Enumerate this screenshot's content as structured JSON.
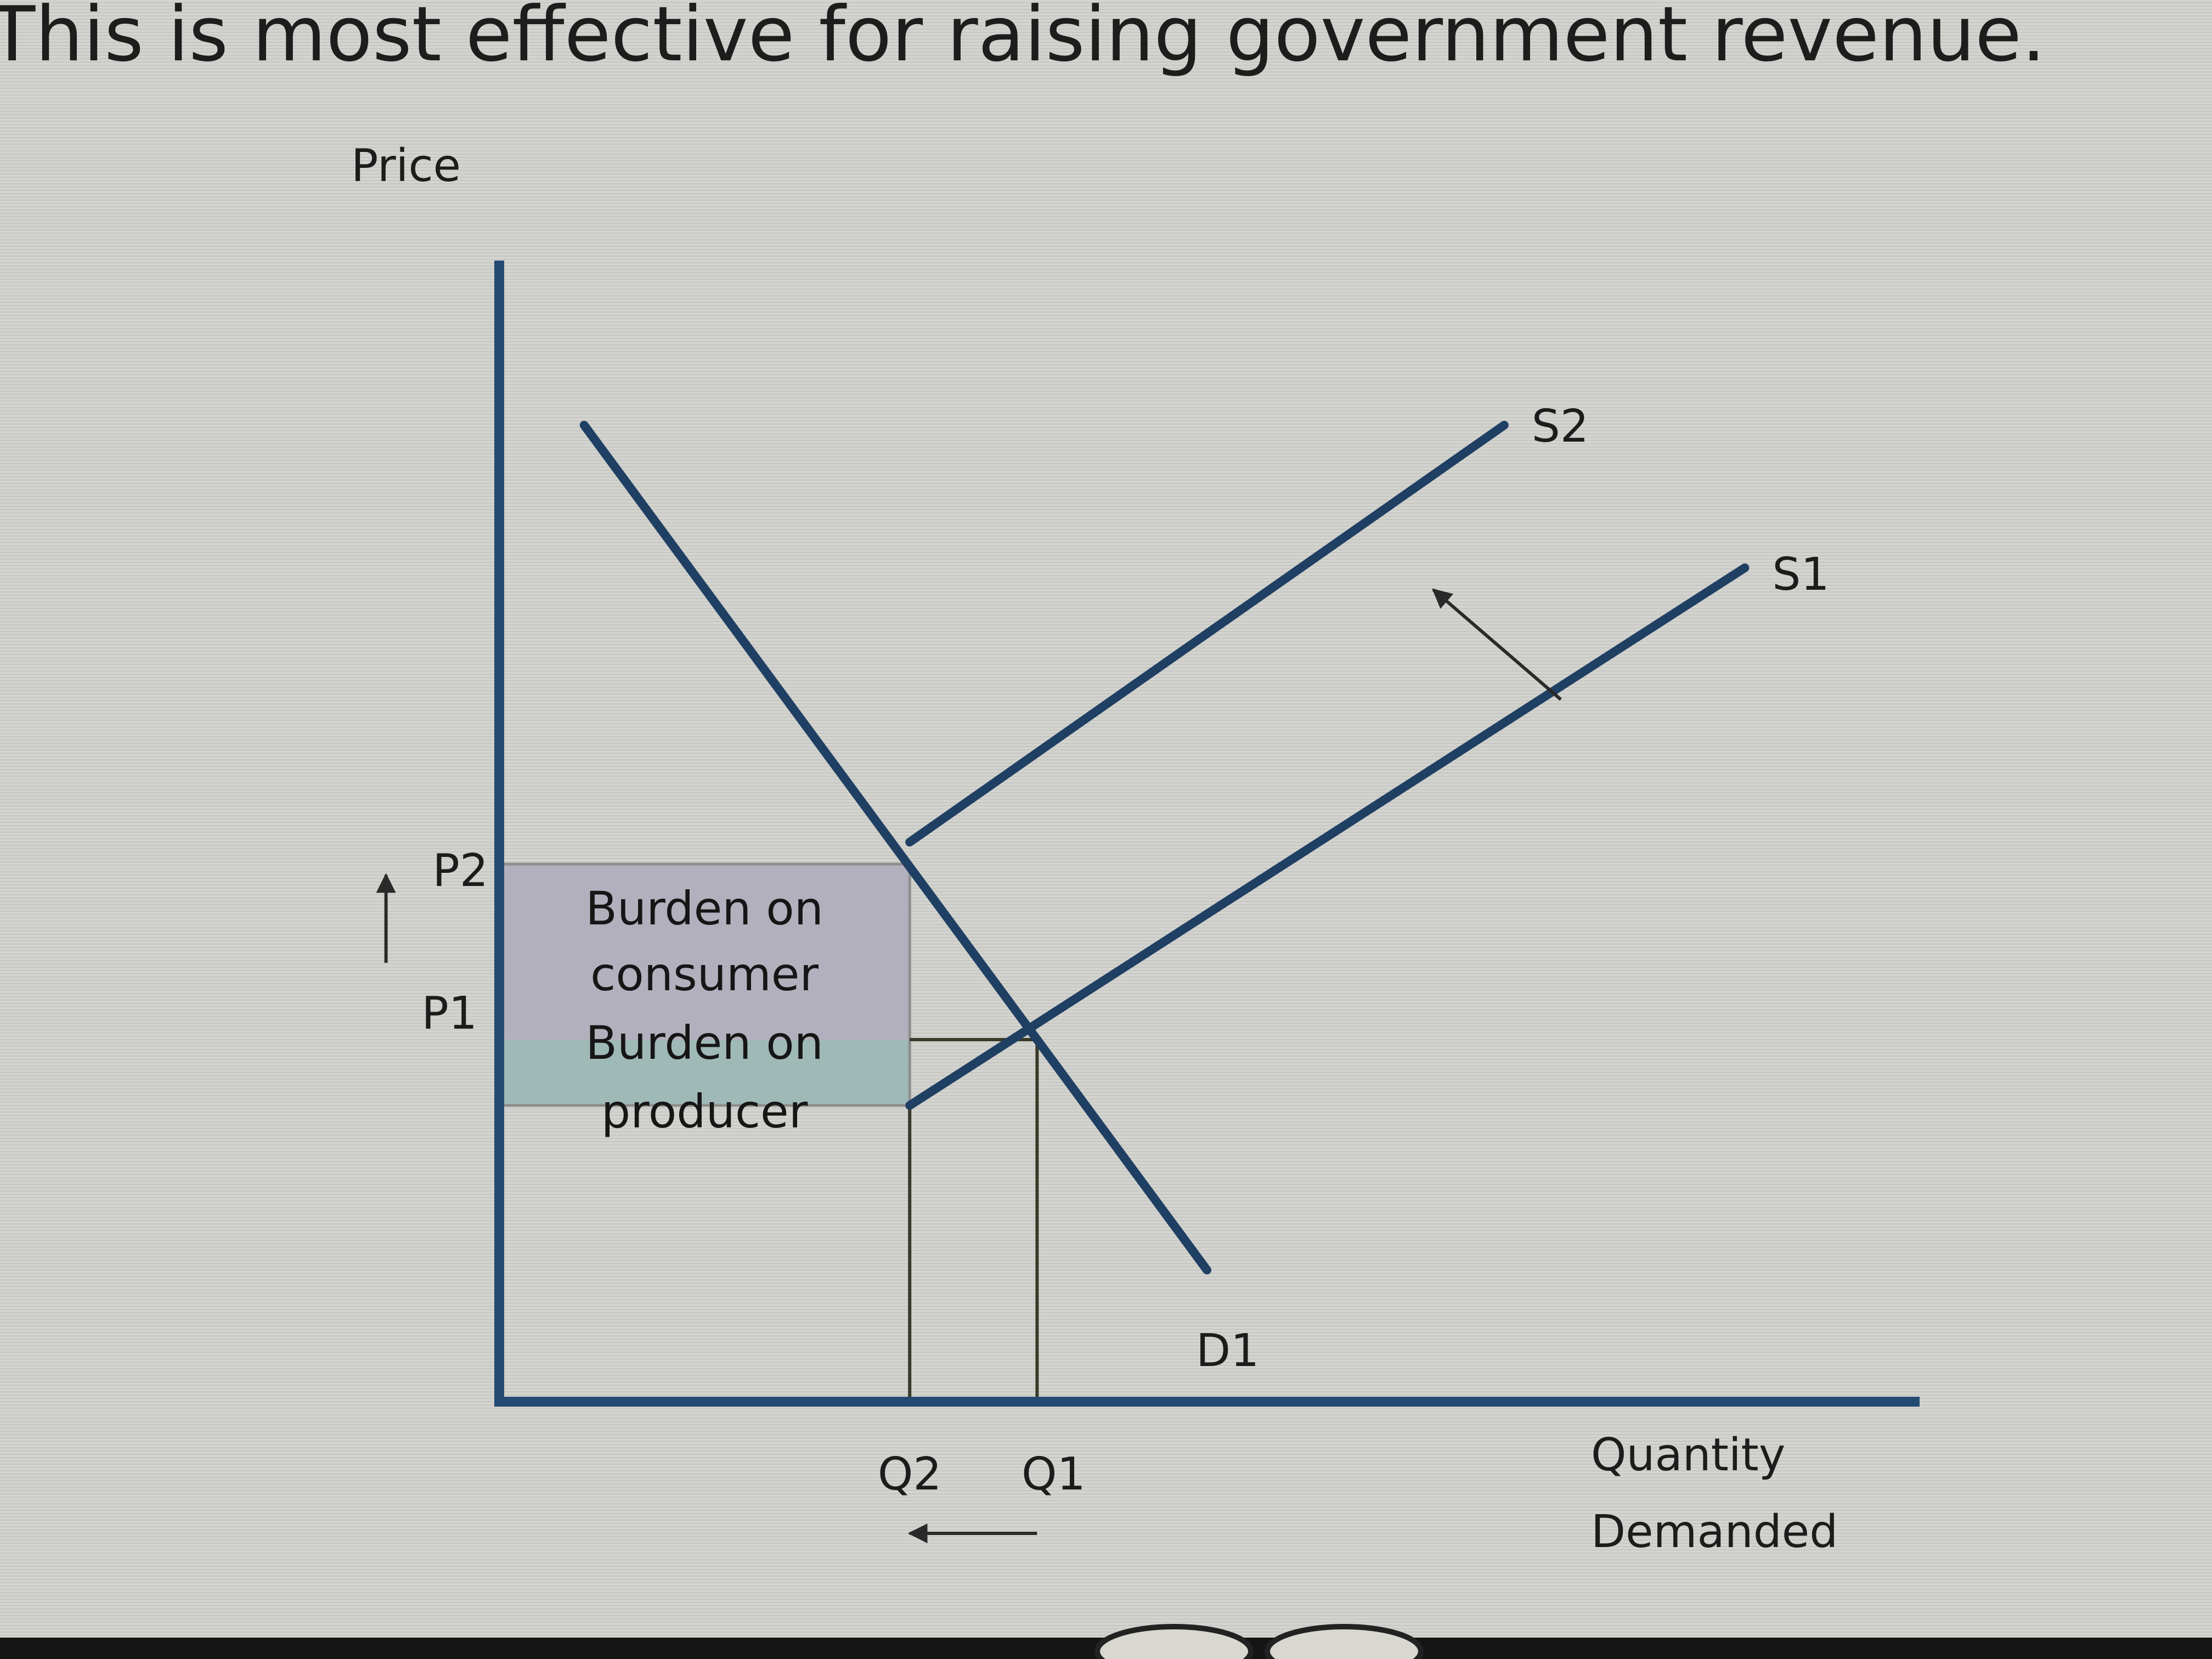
{
  "header": {
    "title": "This is most effective for raising government revenue."
  },
  "chart_data": {
    "type": "line",
    "title": "This is most effective for raising government revenue.",
    "xlabel_line1": "Quantity",
    "xlabel_line2": "Demanded",
    "ylabel": "Price",
    "x_ticks": [
      {
        "label": "Q2",
        "value": 0.29
      },
      {
        "label": "Q1",
        "value": 0.38
      }
    ],
    "y_ticks": [
      {
        "label": "P2",
        "value": 0.49
      },
      {
        "label": "P1",
        "value": 0.33
      }
    ],
    "xlim": [
      0,
      1
    ],
    "ylim": [
      0,
      1
    ],
    "grid": false,
    "series": [
      {
        "name": "D1",
        "x": [
          0.06,
          0.5
        ],
        "y": [
          0.89,
          0.12
        ],
        "color": "#1f3f63"
      },
      {
        "name": "S1",
        "x": [
          0.29,
          0.88
        ],
        "y": [
          0.27,
          0.76
        ],
        "color": "#1f3f63"
      },
      {
        "name": "S2",
        "x": [
          0.29,
          0.71
        ],
        "y": [
          0.51,
          0.89
        ],
        "color": "#1f3f63"
      }
    ],
    "regions": [
      {
        "label_line1": "Burden on",
        "label_line2": "consumer",
        "x": [
          0,
          0.29
        ],
        "y": [
          0.33,
          0.49
        ],
        "color": "#b3b0be"
      },
      {
        "label_line1": "Burden on",
        "label_line2": "producer",
        "x": [
          0,
          0.29
        ],
        "y": [
          0.27,
          0.33
        ],
        "color": "#9fb9b6"
      }
    ],
    "annotations": [
      {
        "type": "arrow",
        "meaning": "supply shift from S1 to S2",
        "from": [
          0.75,
          0.64
        ],
        "to": [
          0.66,
          0.74
        ]
      },
      {
        "type": "arrow",
        "meaning": "price rise from P1 to P2",
        "from": [
          -0.08,
          0.4
        ],
        "to": [
          -0.08,
          0.48
        ]
      },
      {
        "type": "arrow",
        "meaning": "quantity fall from Q1 to Q2",
        "from": [
          0.38,
          -0.12
        ],
        "to": [
          0.29,
          -0.12
        ]
      }
    ]
  }
}
